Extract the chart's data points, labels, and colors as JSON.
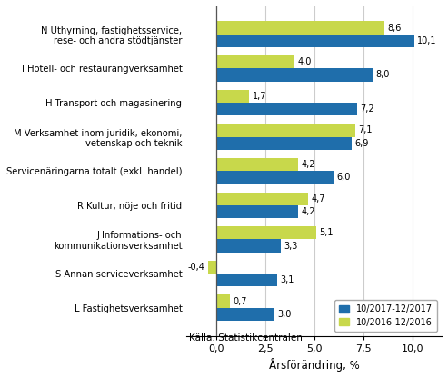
{
  "categories": [
    "N Uthyrning, fastighetsservice,\nrese- och andra stödtjänster",
    "I Hotell- och restaurangverksamhet",
    "H Transport och magasinering",
    "M Verksamhet inom juridik, ekonomi,\nvetenskap och teknik",
    "Servicenäringarna totalt (exkl. handel)",
    "R Kultur, nöje och fritid",
    "J Informations- och\nkommunikationsverksamhet",
    "S Annan serviceverksamhet",
    "L Fastighetsverksamhet"
  ],
  "values_2017": [
    10.1,
    8.0,
    7.2,
    6.9,
    6.0,
    4.2,
    3.3,
    3.1,
    3.0
  ],
  "values_2016": [
    8.6,
    4.0,
    1.7,
    7.1,
    4.2,
    4.7,
    5.1,
    -0.4,
    0.7
  ],
  "color_2017": "#1f6eab",
  "color_2016": "#c8d84b",
  "legend_2017": "10/2017-12/2017",
  "legend_2016": "10/2016-12/2016",
  "xlabel": "Årsförändring, %",
  "xlim": [
    -1.5,
    11.5
  ],
  "xticks": [
    0.0,
    2.5,
    5.0,
    7.5,
    10.0
  ],
  "xtick_labels": [
    "0,0",
    "2,5",
    "5,0",
    "7,5",
    "10,0"
  ],
  "source": "Källa: Statistikcentralen",
  "bar_height": 0.38,
  "background_color": "#ffffff",
  "grid_color": "#cccccc"
}
